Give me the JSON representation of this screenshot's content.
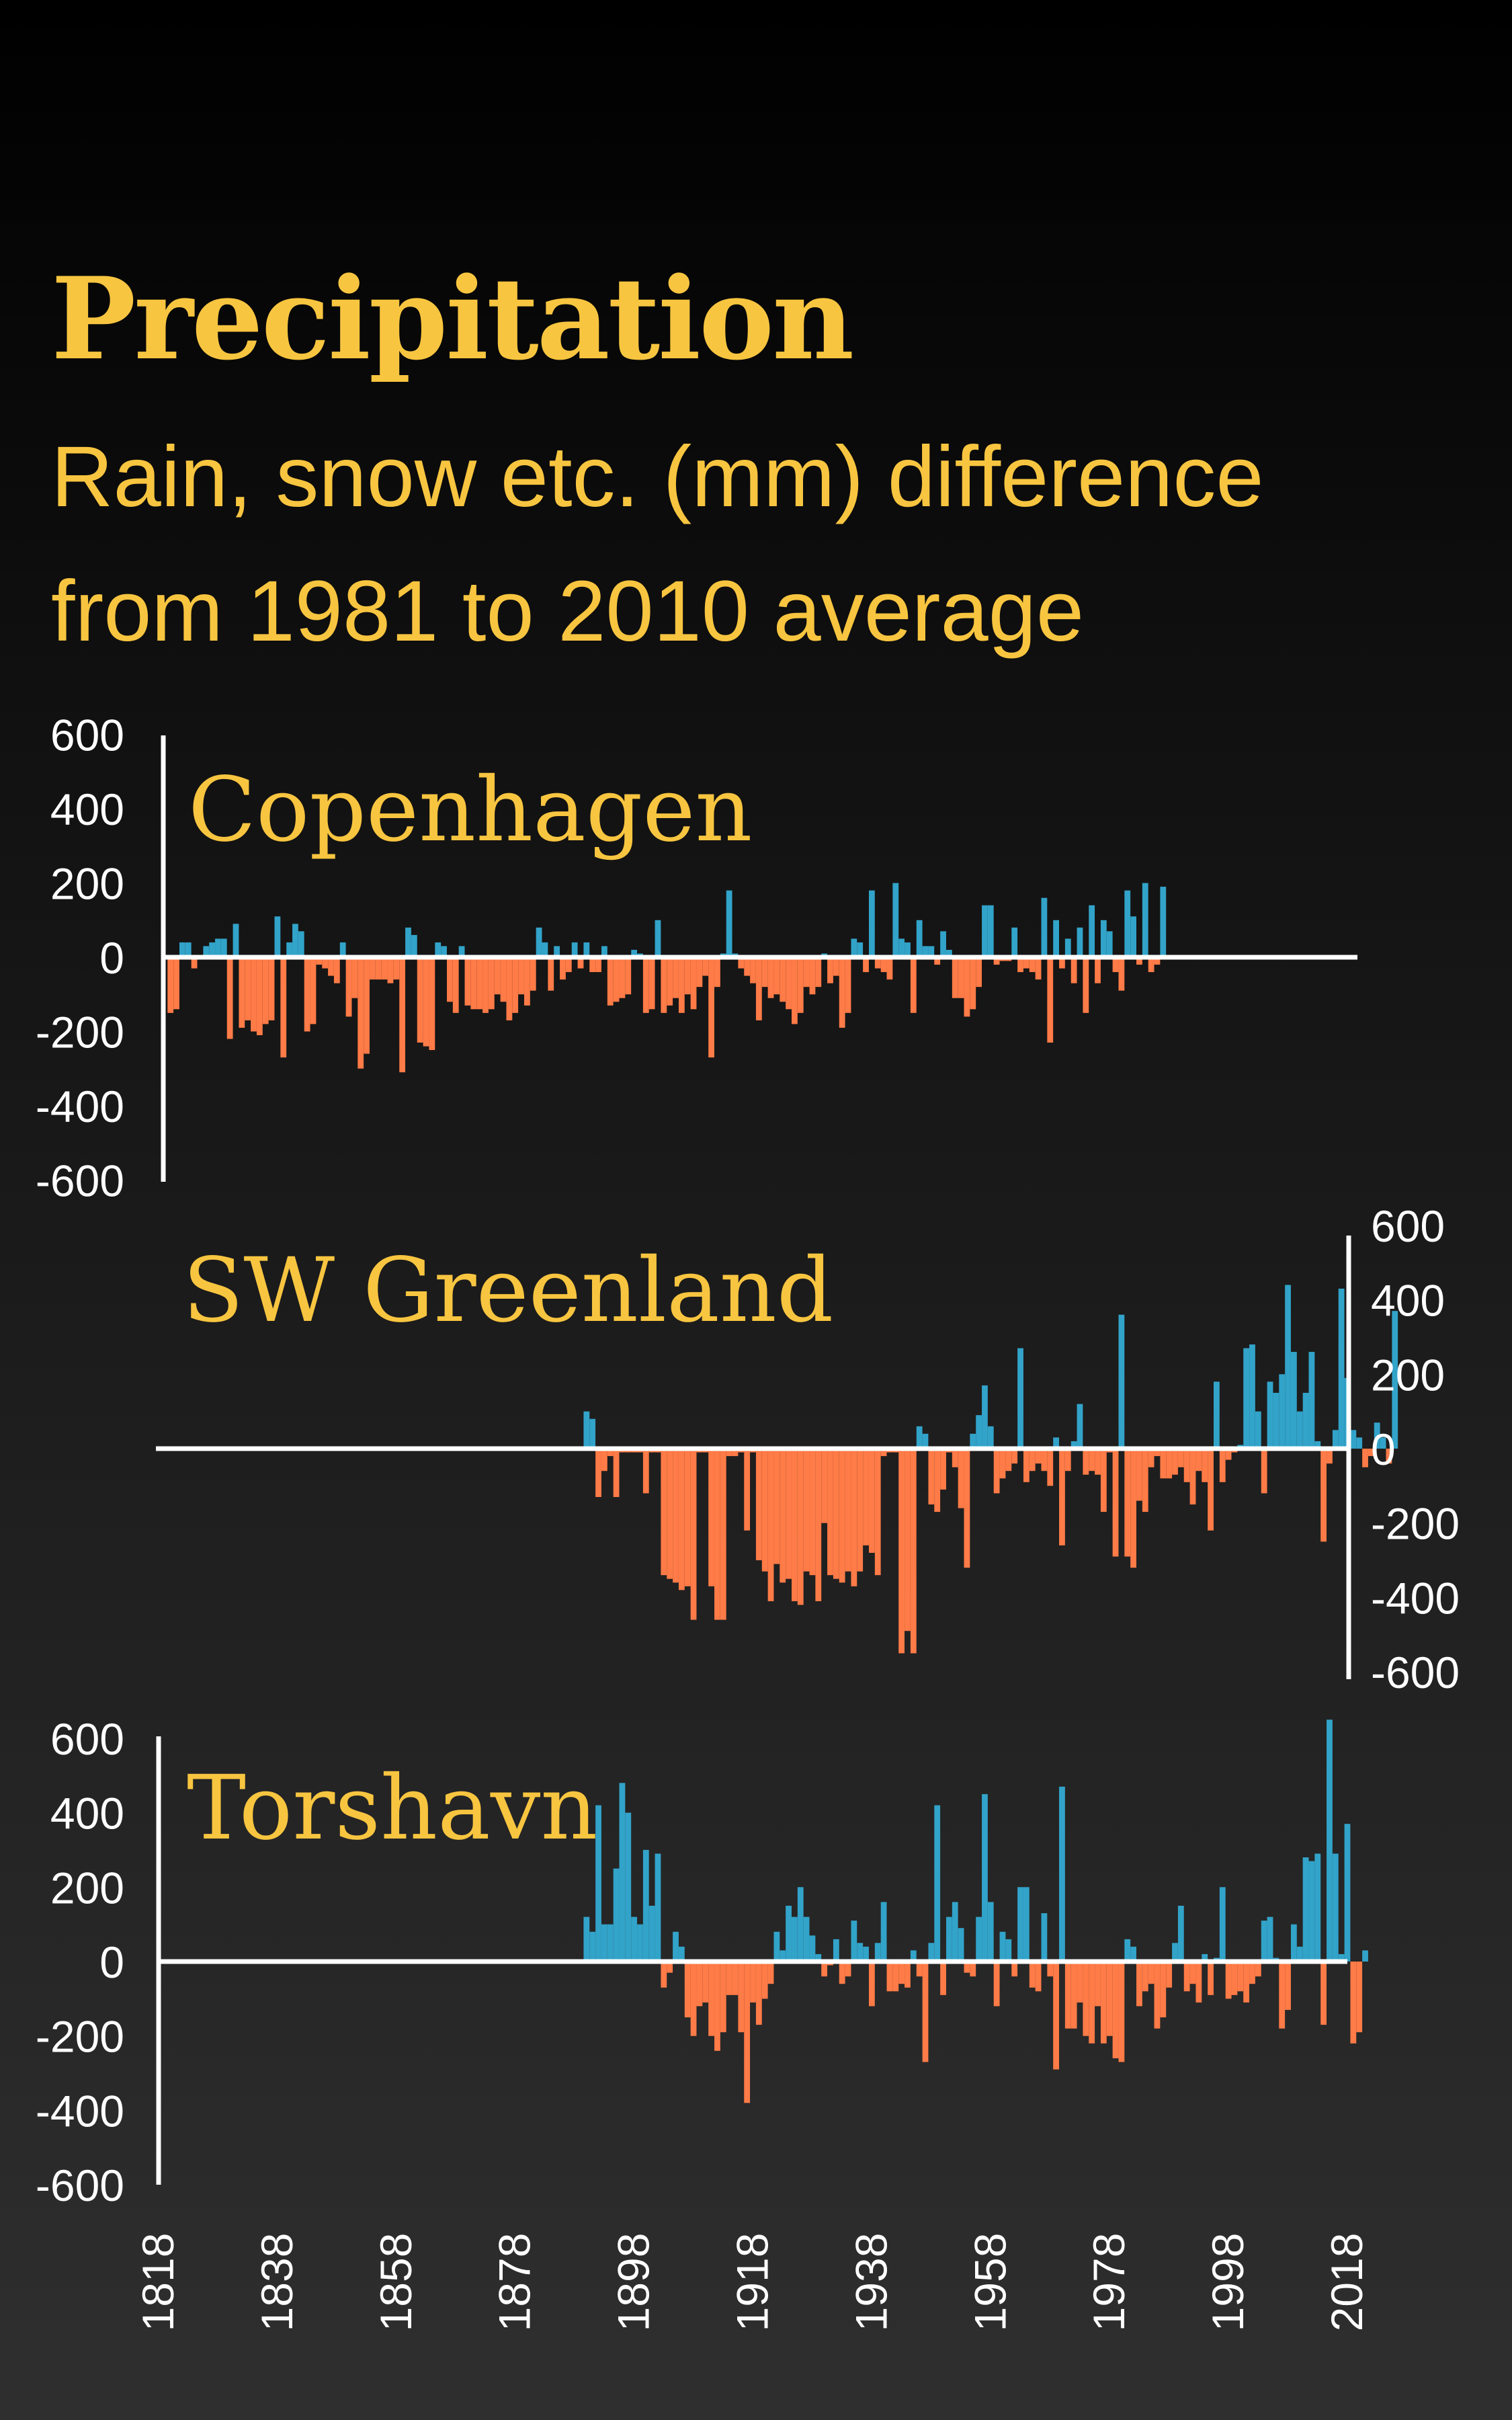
{
  "title": "Precipitation",
  "subtitle_line1": "Rain, snow etc. (mm) difference",
  "subtitle_line2": "from 1981 to 2010 average",
  "colors": {
    "background_top": "#000000",
    "background_bottom": "#2f2f2f",
    "title": "#f8c540",
    "positive_bar": "#32a3c9",
    "negative_bar": "#ff7b47",
    "axis": "#ffffff"
  },
  "chart_data": [
    {
      "type": "bar",
      "name": "Copenhagen",
      "y_axis_side": "left",
      "ylim": [
        -600,
        600
      ],
      "yticks": [
        "600",
        "400",
        "200",
        "0",
        "-200",
        "-400",
        "-600"
      ],
      "x_start": 1820,
      "values": [
        -150,
        -140,
        40,
        40,
        -30,
        -5,
        30,
        40,
        50,
        50,
        -220,
        90,
        -190,
        -170,
        -200,
        -210,
        -180,
        -170,
        110,
        -270,
        40,
        90,
        70,
        -200,
        -180,
        -20,
        -30,
        -50,
        -70,
        40,
        -160,
        -110,
        -300,
        -260,
        -60,
        -60,
        -60,
        -70,
        -60,
        -310,
        80,
        60,
        -230,
        -240,
        -250,
        40,
        30,
        -120,
        -150,
        30,
        -130,
        -140,
        -140,
        -150,
        -140,
        -100,
        -120,
        -170,
        -150,
        -100,
        -130,
        -90,
        80,
        40,
        -90,
        30,
        -60,
        -40,
        40,
        -30,
        40,
        -40,
        -40,
        30,
        -130,
        -120,
        -110,
        -100,
        20,
        10,
        -150,
        -140,
        100,
        -150,
        -130,
        -110,
        -150,
        -100,
        -140,
        -80,
        -50,
        -270,
        -80,
        10,
        180,
        10,
        -30,
        -50,
        -70,
        -170,
        -80,
        -110,
        -100,
        -120,
        -140,
        -180,
        -150,
        -80,
        -100,
        -80,
        10,
        -70,
        -50,
        -190,
        -150,
        50,
        40,
        -40,
        180,
        -30,
        -40,
        -60,
        200,
        50,
        40,
        -150,
        100,
        30,
        30,
        -20,
        70,
        20,
        -110,
        -110,
        -160,
        -140,
        -80,
        140,
        140,
        -20,
        -10,
        -10,
        80,
        -40,
        -30,
        -40,
        -60,
        160,
        -230,
        100,
        -30,
        50,
        -70,
        80,
        -150,
        140,
        -70,
        100,
        70,
        -40,
        -90,
        180,
        110,
        -20,
        200,
        -40,
        -20,
        190
      ],
      "x_tick_labels": [
        "1818",
        "1838",
        "1858",
        "1878",
        "1898",
        "1918",
        "1938",
        "1958",
        "1978",
        "1998",
        "2018"
      ]
    },
    {
      "type": "bar",
      "name": "SW Greenland",
      "y_axis_side": "right",
      "ylim": [
        -600,
        600
      ],
      "yticks": [
        "600",
        "400",
        "200",
        "0",
        "-200",
        "-400",
        "-600"
      ],
      "x_start": 1890,
      "values": [
        100,
        80,
        -130,
        -60,
        -20,
        -130,
        -10,
        -10,
        -10,
        -10,
        -120,
        -10,
        -10,
        -340,
        -350,
        -360,
        -380,
        -370,
        -460,
        -10,
        -10,
        -370,
        -460,
        -460,
        -20,
        -20,
        -10,
        -220,
        -10,
        -300,
        -330,
        -410,
        -310,
        -360,
        -350,
        -410,
        -420,
        -330,
        -340,
        -410,
        -200,
        -340,
        -350,
        -360,
        -330,
        -370,
        -330,
        -260,
        -280,
        -340,
        -20,
        -10,
        -10,
        -550,
        -490,
        -550,
        60,
        40,
        -150,
        -170,
        -110,
        -10,
        -50,
        -160,
        -320,
        40,
        90,
        170,
        60,
        -120,
        -80,
        -60,
        -40,
        270,
        -90,
        -60,
        -40,
        -60,
        -100,
        30,
        -260,
        -60,
        20,
        120,
        -70,
        -60,
        -70,
        -170,
        -10,
        -290,
        360,
        -290,
        -320,
        -140,
        -170,
        -50,
        -20,
        -80,
        -80,
        -70,
        -50,
        -90,
        -150,
        -60,
        -90,
        -220,
        180,
        -90,
        -30,
        -10,
        10,
        270,
        280,
        100,
        -120,
        180,
        150,
        200,
        440,
        260,
        100,
        150,
        260,
        20,
        -250,
        -40,
        50,
        430,
        190,
        50,
        30,
        -50,
        -20,
        70,
        30,
        -40,
        370
      ],
      "x_tick_labels": []
    },
    {
      "type": "bar",
      "name": "Torshavn",
      "y_axis_side": "left",
      "ylim": [
        -600,
        600
      ],
      "yticks": [
        "600",
        "400",
        "200",
        "0",
        "-200",
        "-400",
        "-600"
      ],
      "x_start": 1890,
      "values": [
        120,
        80,
        420,
        100,
        100,
        250,
        480,
        400,
        120,
        100,
        300,
        150,
        290,
        -70,
        -30,
        80,
        40,
        -150,
        -200,
        -120,
        -110,
        -200,
        -240,
        -190,
        -90,
        -90,
        -190,
        -380,
        -110,
        -170,
        -100,
        -60,
        80,
        30,
        150,
        120,
        200,
        120,
        70,
        20,
        -40,
        -10,
        60,
        -60,
        -40,
        110,
        50,
        40,
        -120,
        50,
        160,
        -80,
        -80,
        -60,
        -70,
        30,
        -40,
        -270,
        50,
        420,
        -90,
        120,
        160,
        90,
        -30,
        -40,
        120,
        450,
        160,
        -120,
        80,
        60,
        -40,
        200,
        200,
        -70,
        -80,
        130,
        -40,
        -290,
        470,
        -180,
        -180,
        -110,
        -200,
        -220,
        -120,
        -220,
        -200,
        -260,
        -270,
        60,
        40,
        -120,
        -80,
        -60,
        -180,
        -150,
        -70,
        50,
        150,
        -80,
        -60,
        -110,
        20,
        -90,
        10,
        200,
        -100,
        -90,
        -80,
        -110,
        -60,
        -40,
        110,
        120,
        10,
        -180,
        -130,
        100,
        40,
        280,
        270,
        290,
        -170,
        650,
        290,
        20,
        370,
        -220,
        -190,
        30
      ],
      "x_tick_labels": []
    }
  ],
  "x_axis": {
    "tick_labels": [
      "1818",
      "1838",
      "1858",
      "1878",
      "1898",
      "1918",
      "1938",
      "1958",
      "1978",
      "1998",
      "2018"
    ],
    "tick_years": [
      1818,
      1838,
      1858,
      1878,
      1898,
      1918,
      1938,
      1958,
      1978,
      1998,
      2018
    ]
  }
}
